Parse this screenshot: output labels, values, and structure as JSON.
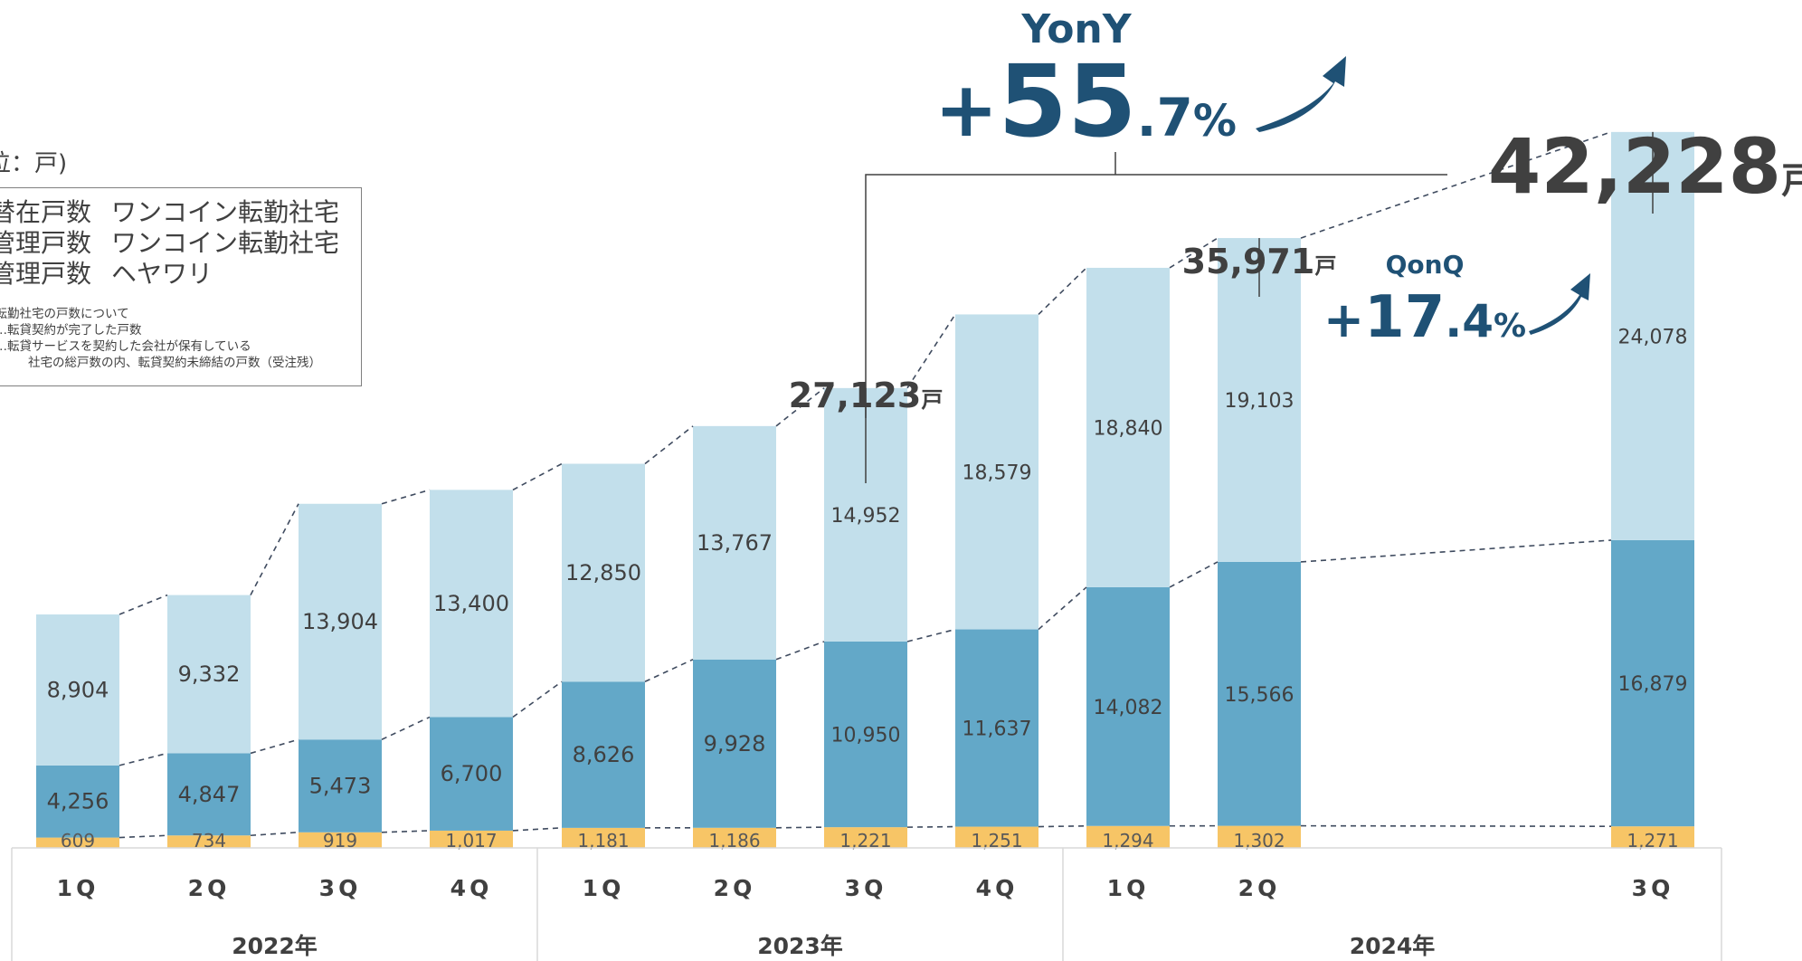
{
  "unit_label": "位：戸)",
  "legend": {
    "rows": [
      {
        "metric": "替在戸数",
        "product": "ワンコイン転勤社宅"
      },
      {
        "metric": "管理戸数",
        "product": "ワンコイン転勤社宅"
      },
      {
        "metric": "管理戸数",
        "product": "ヘヤワリ"
      }
    ],
    "notes": [
      "ン転勤社宅の戸数について",
      "数…転貸契約が完了した戸数",
      "数…転貸サービスを契約した会社が保有している",
      "社宅の総戸数の内、転貸契約未締結の戸数（受注残）"
    ]
  },
  "colors": {
    "bottom": "#f7c566",
    "middle": "#63a8c8",
    "top": "#c2dfeb",
    "growth": "#1f5175",
    "total": "#404040",
    "dashed": "#3f4b5f"
  },
  "chart_data": {
    "type": "bar",
    "stacked": true,
    "categories": [
      "1Q",
      "2Q",
      "3Q",
      "4Q",
      "1Q",
      "2Q",
      "3Q",
      "4Q",
      "1Q",
      "2Q",
      "3Q"
    ],
    "year_groups": [
      {
        "label": "2022年",
        "count": 4
      },
      {
        "label": "2023年",
        "count": 4
      },
      {
        "label": "2024年",
        "count": 3
      }
    ],
    "series": [
      {
        "key": "bottom",
        "values": [
          609,
          734,
          919,
          1017,
          1181,
          1186,
          1221,
          1251,
          1294,
          1302,
          1271
        ]
      },
      {
        "key": "middle",
        "values": [
          4256,
          4847,
          5473,
          6700,
          8626,
          9928,
          10950,
          11637,
          14082,
          15566,
          16879
        ]
      },
      {
        "key": "top",
        "values": [
          8904,
          9332,
          13904,
          13400,
          12850,
          13767,
          14952,
          18579,
          18840,
          19103,
          24078
        ]
      }
    ],
    "value_labels": {
      "bottom": [
        "609",
        "734",
        "919",
        "1,017",
        "1,181",
        "1,186",
        "1,221",
        "1,251",
        "1,294",
        "1,302",
        "1,271"
      ],
      "middle": [
        "4,256",
        "4,847",
        "5,473",
        "6,700",
        "8,626",
        "9,928",
        "10,950",
        "11,637",
        "14,082",
        "15,566",
        "16,879"
      ],
      "top": [
        "8,904",
        "9,332",
        "13,904",
        "13,400",
        "12,850",
        "13,767",
        "14,952",
        "18,579",
        "18,840",
        "19,103",
        "24,078"
      ]
    },
    "totals": [
      {
        "index": 6,
        "number": "27,123",
        "unit": "戸"
      },
      {
        "index": 9,
        "number": "35,971",
        "unit": "戸"
      },
      {
        "index": 10,
        "number": "42,228",
        "unit": "戸"
      }
    ],
    "yony": {
      "label": "YonY",
      "sign": "+",
      "big": "55",
      "small": ".7",
      "pct": "%"
    },
    "qonq": {
      "label": "QonQ",
      "sign": "+",
      "big": "17",
      "small": ".4",
      "pct": "%"
    },
    "ylim": [
      0,
      47000
    ]
  }
}
